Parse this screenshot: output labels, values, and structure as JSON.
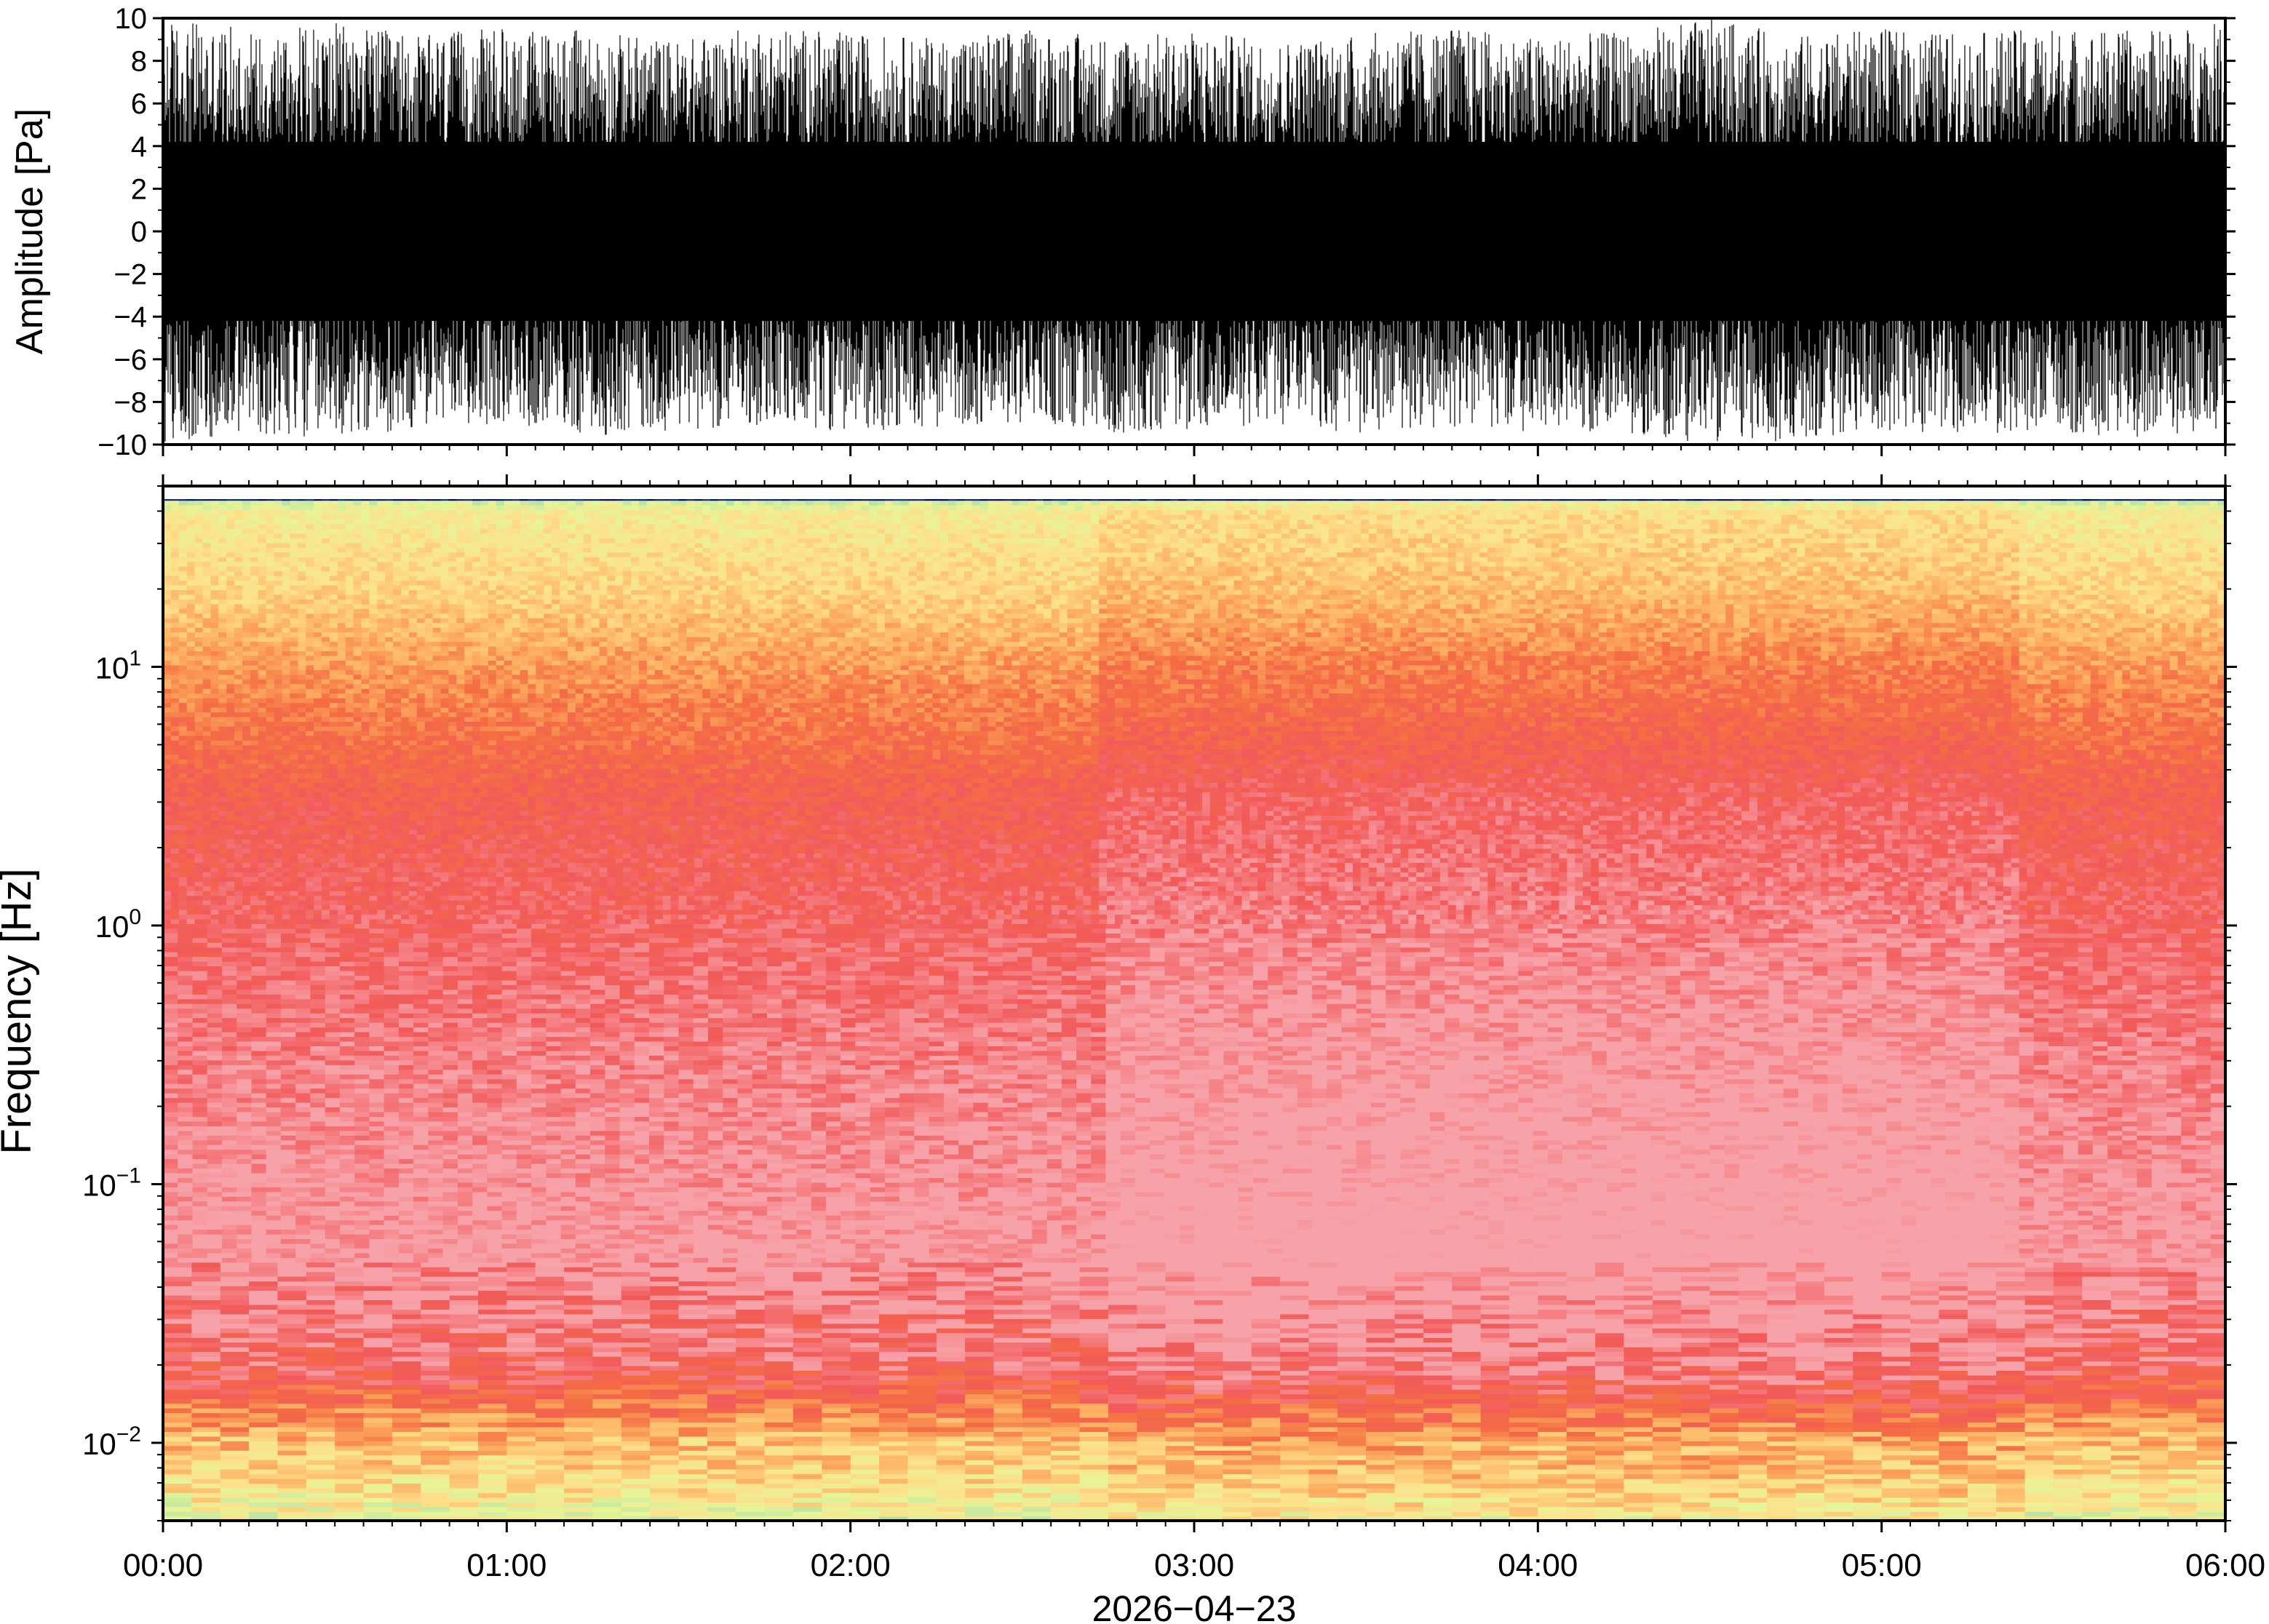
{
  "chart_data": [
    {
      "type": "line",
      "panel": "waveform",
      "ylabel": "Amplitude [Pa]",
      "ylim": [
        -10,
        10
      ],
      "yticks": [
        -10,
        -8,
        -6,
        -4,
        -2,
        0,
        2,
        4,
        6,
        8,
        10
      ],
      "ytick_labels": [
        "−10",
        "−8",
        "−6",
        "−4",
        "−2",
        "0",
        "2",
        "4",
        "6",
        "8",
        "10"
      ],
      "xlim": [
        "2026-04-23 00:00",
        "2026-04-23 06:00"
      ],
      "grid": false,
      "color": "#000000",
      "series": [
        {
          "x": [
            "00:00",
            "00:15",
            "00:30",
            "00:45",
            "01:00",
            "01:15",
            "01:30",
            "01:45",
            "02:00",
            "02:15",
            "02:30",
            "02:45",
            "03:00",
            "03:15",
            "03:30",
            "03:45",
            "04:00",
            "04:15",
            "04:30",
            "04:45",
            "05:00",
            "05:15",
            "05:30",
            "05:45",
            "06:00"
          ],
          "upper_envelope": [
            10,
            9.5,
            9.8,
            9.2,
            9.6,
            9.4,
            9.0,
            9.7,
            9.3,
            9.1,
            9.5,
            9.2,
            9.4,
            9.0,
            9.3,
            9.6,
            9.1,
            9.4,
            10,
            9.2,
            9.5,
            9.3,
            9.6,
            9.4,
            9.8
          ],
          "lower_envelope": [
            -10,
            -9.5,
            -9.8,
            -9.2,
            -9.0,
            -9.6,
            -9.3,
            -9.1,
            -9.4,
            -9.2,
            -9.0,
            -9.5,
            -9.3,
            -9.1,
            -9.6,
            -9.2,
            -9.4,
            -9.5,
            -10,
            -9.8,
            -9.3,
            -9.6,
            -9.4,
            -9.7,
            -9.5
          ]
        }
      ]
    },
    {
      "type": "heatmap",
      "panel": "spectrogram",
      "ylabel": "Frequency [Hz]",
      "yscale": "log",
      "ylim": [
        0.005,
        50
      ],
      "yticks": [
        0.01,
        0.1,
        1,
        10
      ],
      "ytick_labels": [
        {
          "base": "10",
          "exp": "−2"
        },
        {
          "base": "10",
          "exp": "−1"
        },
        {
          "base": "10",
          "exp": "0"
        },
        {
          "base": "10",
          "exp": "1"
        }
      ],
      "xlabel": "2026−04−23",
      "xticks": [
        "00:00",
        "01:00",
        "02:00",
        "03:00",
        "04:00",
        "05:00",
        "06:00"
      ],
      "grid": false,
      "colormap": "spectral",
      "colors": [
        "#00007f",
        "#2c7bb6",
        "#70dfc0",
        "#abdda4",
        "#e6f598",
        "#fee08b",
        "#fdae61",
        "#f46d43",
        "#f25a5a",
        "#f7a1a8"
      ],
      "relative_power_profile": {
        "frequency_hz": [
          0.005,
          0.007,
          0.01,
          0.015,
          0.02,
          0.03,
          0.05,
          0.1,
          0.3,
          1,
          3,
          10,
          20,
          40,
          45,
          50
        ],
        "level": [
          0.55,
          0.45,
          0.38,
          0.2,
          0.1,
          0.05,
          0.0,
          0.02,
          0.05,
          0.1,
          0.15,
          0.3,
          0.42,
          0.5,
          0.62,
          1.0
        ]
      }
    }
  ]
}
